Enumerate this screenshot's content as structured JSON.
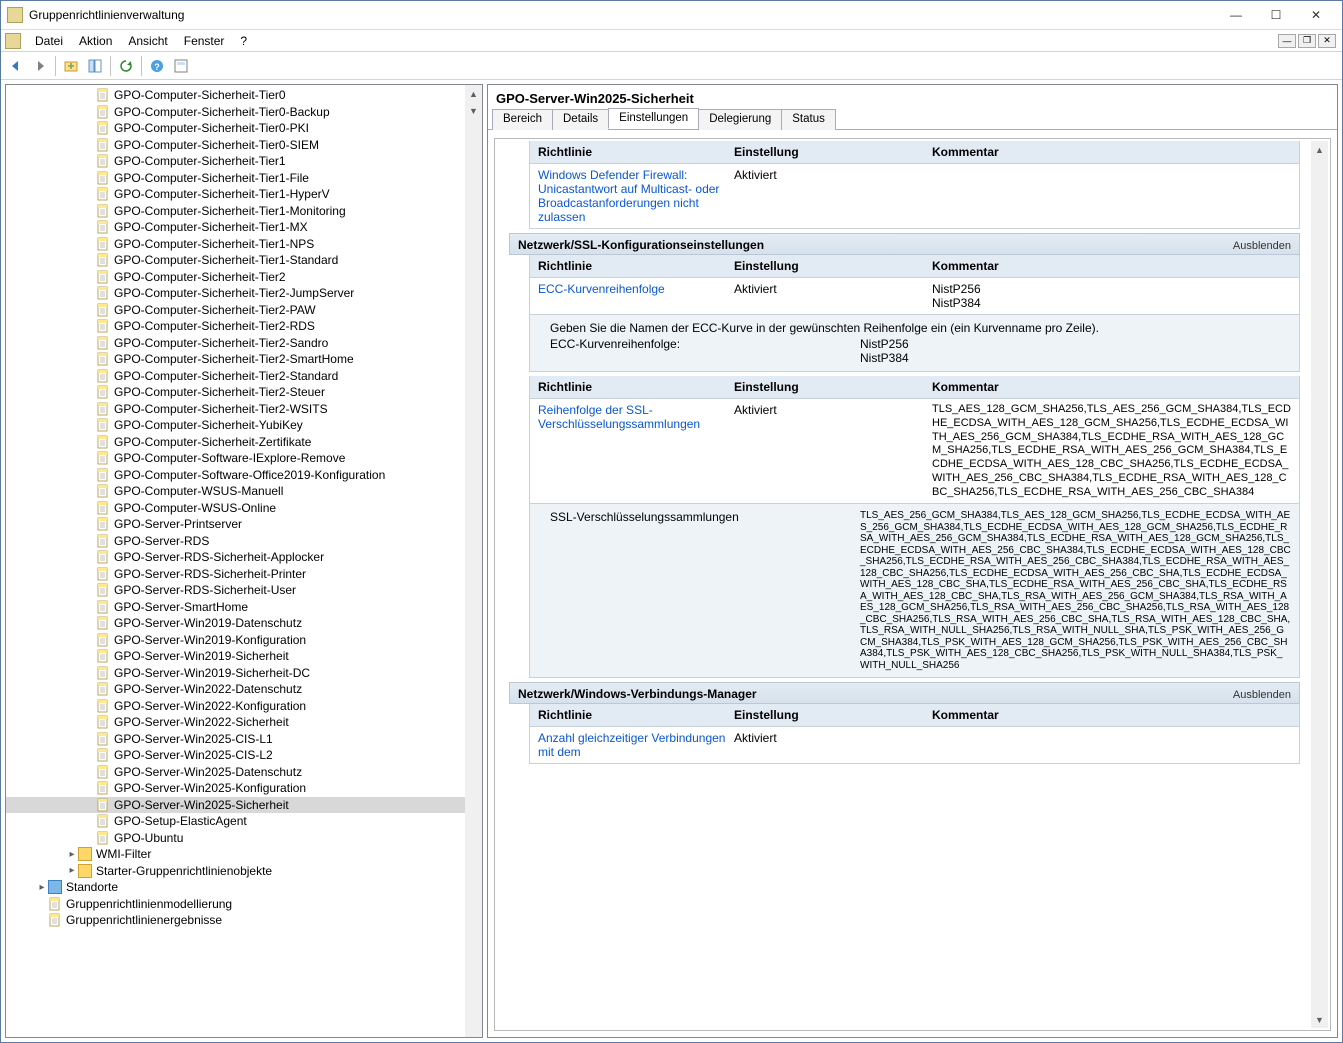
{
  "window": {
    "title": "Gruppenrichtlinienverwaltung"
  },
  "menu": [
    "Datei",
    "Aktion",
    "Ansicht",
    "Fenster",
    "?"
  ],
  "tree": {
    "items": [
      "GPO-Computer-Sicherheit-Tier0",
      "GPO-Computer-Sicherheit-Tier0-Backup",
      "GPO-Computer-Sicherheit-Tier0-PKI",
      "GPO-Computer-Sicherheit-Tier0-SIEM",
      "GPO-Computer-Sicherheit-Tier1",
      "GPO-Computer-Sicherheit-Tier1-File",
      "GPO-Computer-Sicherheit-Tier1-HyperV",
      "GPO-Computer-Sicherheit-Tier1-Monitoring",
      "GPO-Computer-Sicherheit-Tier1-MX",
      "GPO-Computer-Sicherheit-Tier1-NPS",
      "GPO-Computer-Sicherheit-Tier1-Standard",
      "GPO-Computer-Sicherheit-Tier2",
      "GPO-Computer-Sicherheit-Tier2-JumpServer",
      "GPO-Computer-Sicherheit-Tier2-PAW",
      "GPO-Computer-Sicherheit-Tier2-RDS",
      "GPO-Computer-Sicherheit-Tier2-Sandro",
      "GPO-Computer-Sicherheit-Tier2-SmartHome",
      "GPO-Computer-Sicherheit-Tier2-Standard",
      "GPO-Computer-Sicherheit-Tier2-Steuer",
      "GPO-Computer-Sicherheit-Tier2-WSITS",
      "GPO-Computer-Sicherheit-YubiKey",
      "GPO-Computer-Sicherheit-Zertifikate",
      "GPO-Computer-Software-IExplore-Remove",
      "GPO-Computer-Software-Office2019-Konfiguration",
      "GPO-Computer-WSUS-Manuell",
      "GPO-Computer-WSUS-Online",
      "GPO-Server-Printserver",
      "GPO-Server-RDS",
      "GPO-Server-RDS-Sicherheit-Applocker",
      "GPO-Server-RDS-Sicherheit-Printer",
      "GPO-Server-RDS-Sicherheit-User",
      "GPO-Server-SmartHome",
      "GPO-Server-Win2019-Datenschutz",
      "GPO-Server-Win2019-Konfiguration",
      "GPO-Server-Win2019-Sicherheit",
      "GPO-Server-Win2019-Sicherheit-DC",
      "GPO-Server-Win2022-Datenschutz",
      "GPO-Server-Win2022-Konfiguration",
      "GPO-Server-Win2022-Sicherheit",
      "GPO-Server-Win2025-CIS-L1",
      "GPO-Server-Win2025-CIS-L2",
      "GPO-Server-Win2025-Datenschutz",
      "GPO-Server-Win2025-Konfiguration",
      "GPO-Server-Win2025-Sicherheit",
      "GPO-Setup-ElasticAgent",
      "GPO-Ubuntu"
    ],
    "selected_index": 43,
    "wmi": "WMI-Filter",
    "starter": "Starter-Gruppenrichtlinienobjekte",
    "standorte": "Standorte",
    "model": "Gruppenrichtlinienmodellierung",
    "results": "Gruppenrichtlinienergebnisse"
  },
  "right": {
    "title": "GPO-Server-Win2025-Sicherheit",
    "tabs": [
      "Bereich",
      "Details",
      "Einstellungen",
      "Delegierung",
      "Status"
    ],
    "active_tab": 2,
    "hide_label": "Ausblenden",
    "headers": {
      "policy": "Richtlinie",
      "setting": "Einstellung",
      "comment": "Kommentar"
    },
    "top_policy": {
      "link": "Windows Defender Firewall: Unicastantwort auf Multicast- oder Broadcastanforderungen nicht zulassen",
      "setting": "Aktiviert"
    },
    "ssl_section": {
      "title": "Netzwerk/SSL-Konfigurationseinstellungen",
      "ecc": {
        "link": "ECC-Kurvenreihenfolge",
        "setting": "Aktiviert",
        "comment1": "NistP256",
        "comment2": "NistP384",
        "helptext": "Geben Sie die Namen der ECC-Kurve in der gewünschten Reihenfolge ein (ein Kurvenname pro Zeile).",
        "field_label": "ECC-Kurvenreihenfolge:",
        "val1": "NistP256",
        "val2": "NistP384"
      },
      "cipher": {
        "link": "Reihenfolge der SSL-Verschlüsselungssammlungen",
        "setting": "Aktiviert",
        "comment": "TLS_AES_128_GCM_SHA256,TLS_AES_256_GCM_SHA384,TLS_ECDHE_ECDSA_WITH_AES_128_GCM_SHA256,TLS_ECDHE_ECDSA_WITH_AES_256_GCM_SHA384,TLS_ECDHE_RSA_WITH_AES_128_GCM_SHA256,TLS_ECDHE_RSA_WITH_AES_256_GCM_SHA384,TLS_ECDHE_ECDSA_WITH_AES_128_CBC_SHA256,TLS_ECDHE_ECDSA_WITH_AES_256_CBC_SHA384,TLS_ECDHE_RSA_WITH_AES_128_CBC_SHA256,TLS_ECDHE_RSA_WITH_AES_256_CBC_SHA384",
        "detail_label": "SSL-Verschlüsselungssammlungen",
        "detail_value": "TLS_AES_256_GCM_SHA384,TLS_AES_128_GCM_SHA256,TLS_ECDHE_ECDSA_WITH_AES_256_GCM_SHA384,TLS_ECDHE_ECDSA_WITH_AES_128_GCM_SHA256,TLS_ECDHE_RSA_WITH_AES_256_GCM_SHA384,TLS_ECDHE_RSA_WITH_AES_128_GCM_SHA256,TLS_ECDHE_ECDSA_WITH_AES_256_CBC_SHA384,TLS_ECDHE_ECDSA_WITH_AES_128_CBC_SHA256,TLS_ECDHE_RSA_WITH_AES_256_CBC_SHA384,TLS_ECDHE_RSA_WITH_AES_128_CBC_SHA256,TLS_ECDHE_ECDSA_WITH_AES_256_CBC_SHA,TLS_ECDHE_ECDSA_WITH_AES_128_CBC_SHA,TLS_ECDHE_RSA_WITH_AES_256_CBC_SHA,TLS_ECDHE_RSA_WITH_AES_128_CBC_SHA,TLS_RSA_WITH_AES_256_GCM_SHA384,TLS_RSA_WITH_AES_128_GCM_SHA256,TLS_RSA_WITH_AES_256_CBC_SHA256,TLS_RSA_WITH_AES_128_CBC_SHA256,TLS_RSA_WITH_AES_256_CBC_SHA,TLS_RSA_WITH_AES_128_CBC_SHA,TLS_RSA_WITH_NULL_SHA256,TLS_RSA_WITH_NULL_SHA,TLS_PSK_WITH_AES_256_GCM_SHA384,TLS_PSK_WITH_AES_128_GCM_SHA256,TLS_PSK_WITH_AES_256_CBC_SHA384,TLS_PSK_WITH_AES_128_CBC_SHA256,TLS_PSK_WITH_NULL_SHA384,TLS_PSK_WITH_NULL_SHA256"
      }
    },
    "wcm_section": {
      "title": "Netzwerk/Windows-Verbindungs-Manager",
      "row": {
        "link": "Anzahl gleichzeitiger Verbindungen mit dem",
        "setting": "Aktiviert"
      }
    }
  }
}
